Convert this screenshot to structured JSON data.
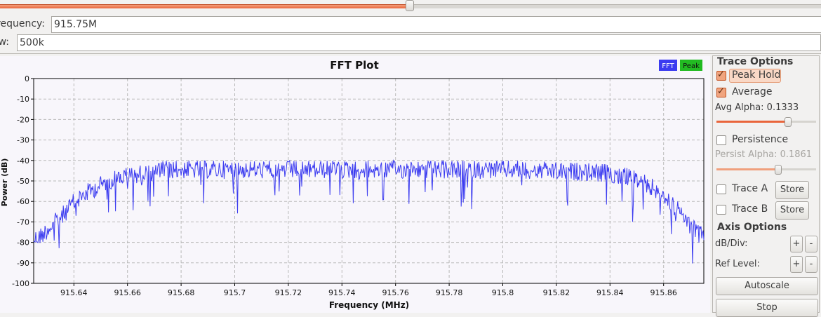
{
  "top_slider": {
    "value_fraction": 0.5
  },
  "fields": {
    "frequency_label": "Frequency:",
    "frequency_value": "915.75M",
    "bw_label": "Bw:",
    "bw_value": "500k"
  },
  "plot": {
    "title": "FFT Plot",
    "legend": [
      {
        "name": "FFT",
        "color": "#3c3cf0"
      },
      {
        "name": "Peak",
        "color": "#22bb22"
      }
    ],
    "background": "#f8f6fb"
  },
  "chart_data": {
    "type": "line",
    "title": "FFT Plot",
    "xlabel": "Frequency (MHz)",
    "ylabel": "Power (dB)",
    "xlim": [
      915.625,
      915.875
    ],
    "ylim": [
      -100,
      0
    ],
    "x_ticks": [
      915.64,
      915.66,
      915.68,
      915.7,
      915.72,
      915.74,
      915.76,
      915.78,
      915.8,
      915.82,
      915.84,
      915.86
    ],
    "x_tick_labels": [
      "915.64",
      "915.66",
      "915.68",
      "915.7",
      "915.72",
      "915.74",
      "915.76",
      "915.78",
      "915.8",
      "915.82",
      "915.84",
      "915.86"
    ],
    "y_ticks": [
      0,
      -10,
      -20,
      -30,
      -40,
      -50,
      -60,
      -70,
      -80,
      -90,
      -100
    ],
    "grid": true,
    "legend_position": "top-right",
    "series": [
      {
        "name": "FFT",
        "color": "#3c3cf0",
        "x": [
          915.625,
          915.628,
          915.632,
          915.636,
          915.64,
          915.642,
          915.644,
          915.648,
          915.652,
          915.656,
          915.66,
          915.665,
          915.67,
          915.675,
          915.68,
          915.69,
          915.7,
          915.71,
          915.72,
          915.73,
          915.74,
          915.75,
          915.76,
          915.77,
          915.78,
          915.79,
          915.8,
          915.81,
          915.82,
          915.83,
          915.84,
          915.845,
          915.85,
          915.855,
          915.86,
          915.864,
          915.868,
          915.872,
          915.875
        ],
        "y": [
          -74,
          -72,
          -67,
          -62,
          -56,
          -54,
          -52,
          -49,
          -46,
          -44,
          -43,
          -42,
          -41,
          -40,
          -40,
          -40,
          -40,
          -40,
          -40,
          -40,
          -40,
          -40,
          -40,
          -40,
          -40,
          -40,
          -40,
          -40,
          -41,
          -41,
          -42,
          -43,
          -45,
          -48,
          -53,
          -58,
          -64,
          -70,
          -73
        ]
      }
    ]
  },
  "trace_options": {
    "title": "Trace Options",
    "peak_hold_label": "Peak Hold",
    "peak_hold_checked": true,
    "average_label": "Average",
    "average_checked": true,
    "avg_alpha_label": "Avg Alpha: 0.1333",
    "avg_alpha_fraction": 0.72,
    "persistence_label": "Persistence",
    "persistence_checked": false,
    "persist_alpha_label": "Persist Alpha: 0.1861",
    "persist_alpha_fraction": 0.62,
    "trace_a_label": "Trace A",
    "trace_b_label": "Trace B",
    "store_label": "Store"
  },
  "axis_options": {
    "title": "Axis Options",
    "db_div_label": "dB/Div:",
    "ref_level_label": "Ref Level:",
    "plus_label": "+",
    "minus_label": "-",
    "autoscale_label": "Autoscale",
    "stop_label": "Stop"
  }
}
